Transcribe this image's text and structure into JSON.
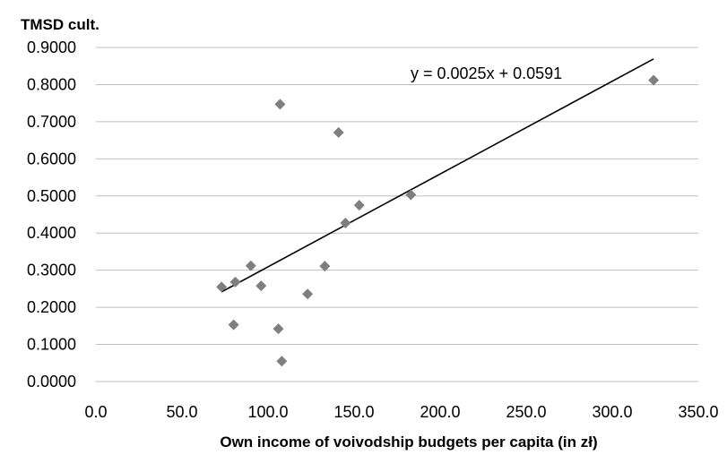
{
  "chart_data": {
    "type": "scatter",
    "ylabel": "TMSD cult.",
    "xlabel": "Own income of voivodship budgets per capita (in zł)",
    "xlim": [
      0,
      350
    ],
    "ylim": [
      0,
      0.9
    ],
    "x_ticks": [
      "0.0",
      "50.0",
      "100.0",
      "150.0",
      "200.0",
      "250.0",
      "300.0",
      "350.0"
    ],
    "y_ticks": [
      "0.0000",
      "0.1000",
      "0.2000",
      "0.3000",
      "0.4000",
      "0.5000",
      "0.6000",
      "0.7000",
      "0.8000",
      "0.9000"
    ],
    "x_tick_values": [
      0,
      50,
      100,
      150,
      200,
      250,
      300,
      350
    ],
    "y_tick_values": [
      0,
      0.1,
      0.2,
      0.3,
      0.4,
      0.5,
      0.6,
      0.7,
      0.8,
      0.9
    ],
    "grid": "horizontal",
    "marker": "diamond",
    "marker_color": "#7f7f7f",
    "points": [
      {
        "x": 73,
        "y": 0.255
      },
      {
        "x": 80,
        "y": 0.153
      },
      {
        "x": 81,
        "y": 0.268
      },
      {
        "x": 90,
        "y": 0.312
      },
      {
        "x": 96,
        "y": 0.258
      },
      {
        "x": 106,
        "y": 0.142
      },
      {
        "x": 107,
        "y": 0.747
      },
      {
        "x": 108,
        "y": 0.055
      },
      {
        "x": 123,
        "y": 0.236
      },
      {
        "x": 133,
        "y": 0.311
      },
      {
        "x": 141,
        "y": 0.671
      },
      {
        "x": 145,
        "y": 0.427
      },
      {
        "x": 153,
        "y": 0.475
      },
      {
        "x": 183,
        "y": 0.503
      },
      {
        "x": 324,
        "y": 0.812
      }
    ],
    "trendline": {
      "slope": 0.0025,
      "intercept": 0.0591,
      "x_range": [
        73,
        324
      ],
      "equation": "y = 0.0025x + 0.0591",
      "color": "#000000"
    }
  }
}
